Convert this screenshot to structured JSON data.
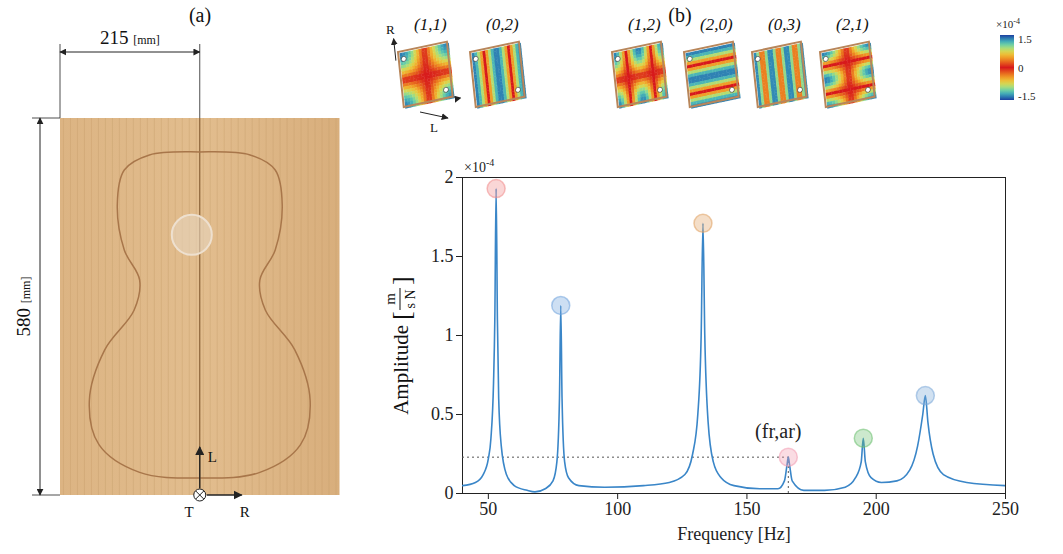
{
  "panel_labels": [
    "(a)",
    "(b)"
  ],
  "plate": {
    "width": 215,
    "height": 580,
    "unit": "[mm]",
    "axis_labels": {
      "longitudinal": "L",
      "tangential": "T",
      "radial": "R"
    }
  },
  "mode_shapes": {
    "labels": [
      "(1,1)",
      "(0,2)",
      "(1,2)",
      "(2,0)",
      "(0,3)",
      "(2,1)"
    ],
    "modes": [
      [
        1,
        1
      ],
      [
        0,
        2
      ],
      [
        1,
        2
      ],
      [
        2,
        0
      ],
      [
        0,
        3
      ],
      [
        2,
        1
      ]
    ],
    "axis_labels": {
      "radial": "R",
      "longitudinal": "L"
    },
    "colorbar": {
      "range": [
        -1.7,
        1.7
      ],
      "ticks": [
        -1.5,
        0,
        1.5
      ],
      "exponent": {
        "base": "×10",
        "power": "-4"
      }
    }
  },
  "chart_data": {
    "type": "line",
    "color": "#3a86c8",
    "x": [
      40,
      45,
      48,
      50,
      51,
      52,
      52.5,
      53,
      53.5,
      54,
      55,
      57,
      60,
      65,
      68,
      72,
      75,
      76.5,
      77.5,
      78,
      78.5,
      79.5,
      81,
      85,
      95,
      110,
      120,
      126,
      129,
      131,
      132.3,
      133,
      133.7,
      135,
      137,
      140,
      145,
      155,
      162,
      164.5,
      165.5,
      166,
      166.5,
      167.5,
      172,
      180,
      188,
      192,
      194.2,
      195,
      195.8,
      198,
      202,
      208,
      213,
      216,
      218,
      219,
      220,
      222,
      226,
      235,
      250
    ],
    "values": [
      0.05,
      0.07,
      0.12,
      0.22,
      0.35,
      0.7,
      1.1,
      1.93,
      1.1,
      0.6,
      0.3,
      0.12,
      0.05,
      0.02,
      0.01,
      0.03,
      0.08,
      0.2,
      0.6,
      1.19,
      0.6,
      0.2,
      0.1,
      0.05,
      0.04,
      0.05,
      0.07,
      0.12,
      0.25,
      0.5,
      1.0,
      1.71,
      1.0,
      0.45,
      0.2,
      0.1,
      0.05,
      0.03,
      0.03,
      0.08,
      0.18,
      0.23,
      0.18,
      0.08,
      0.02,
      0.02,
      0.04,
      0.1,
      0.2,
      0.35,
      0.2,
      0.1,
      0.07,
      0.08,
      0.15,
      0.3,
      0.5,
      0.62,
      0.45,
      0.25,
      0.12,
      0.07,
      0.05
    ],
    "xlim": [
      40,
      250
    ],
    "xticks": [
      50,
      100,
      150,
      200,
      250
    ],
    "ylim": [
      0,
      2
    ],
    "yticks": [
      0,
      0.5,
      1,
      1.5,
      2
    ],
    "xlabel": "Frequency [Hz]",
    "ylabel": {
      "text": "Amplitude",
      "unit_numerator": "m",
      "unit_denominator": "s N",
      "brackets": [
        "[",
        "]"
      ]
    },
    "y_exponent": {
      "base": "×10",
      "power": "-4"
    },
    "peak_markers": {
      "x": [
        53,
        78,
        133,
        166,
        195,
        219
      ],
      "values": [
        1.93,
        1.19,
        1.71,
        0.23,
        0.35,
        0.62
      ],
      "colors": [
        "#f08a8a",
        "#6fa3dc",
        "#e0a060",
        "#f29ab0",
        "#6cc070",
        "#7aa8d8"
      ]
    },
    "annotation": {
      "text": "(fr,ar)",
      "x": 166,
      "y": 0.23
    }
  }
}
